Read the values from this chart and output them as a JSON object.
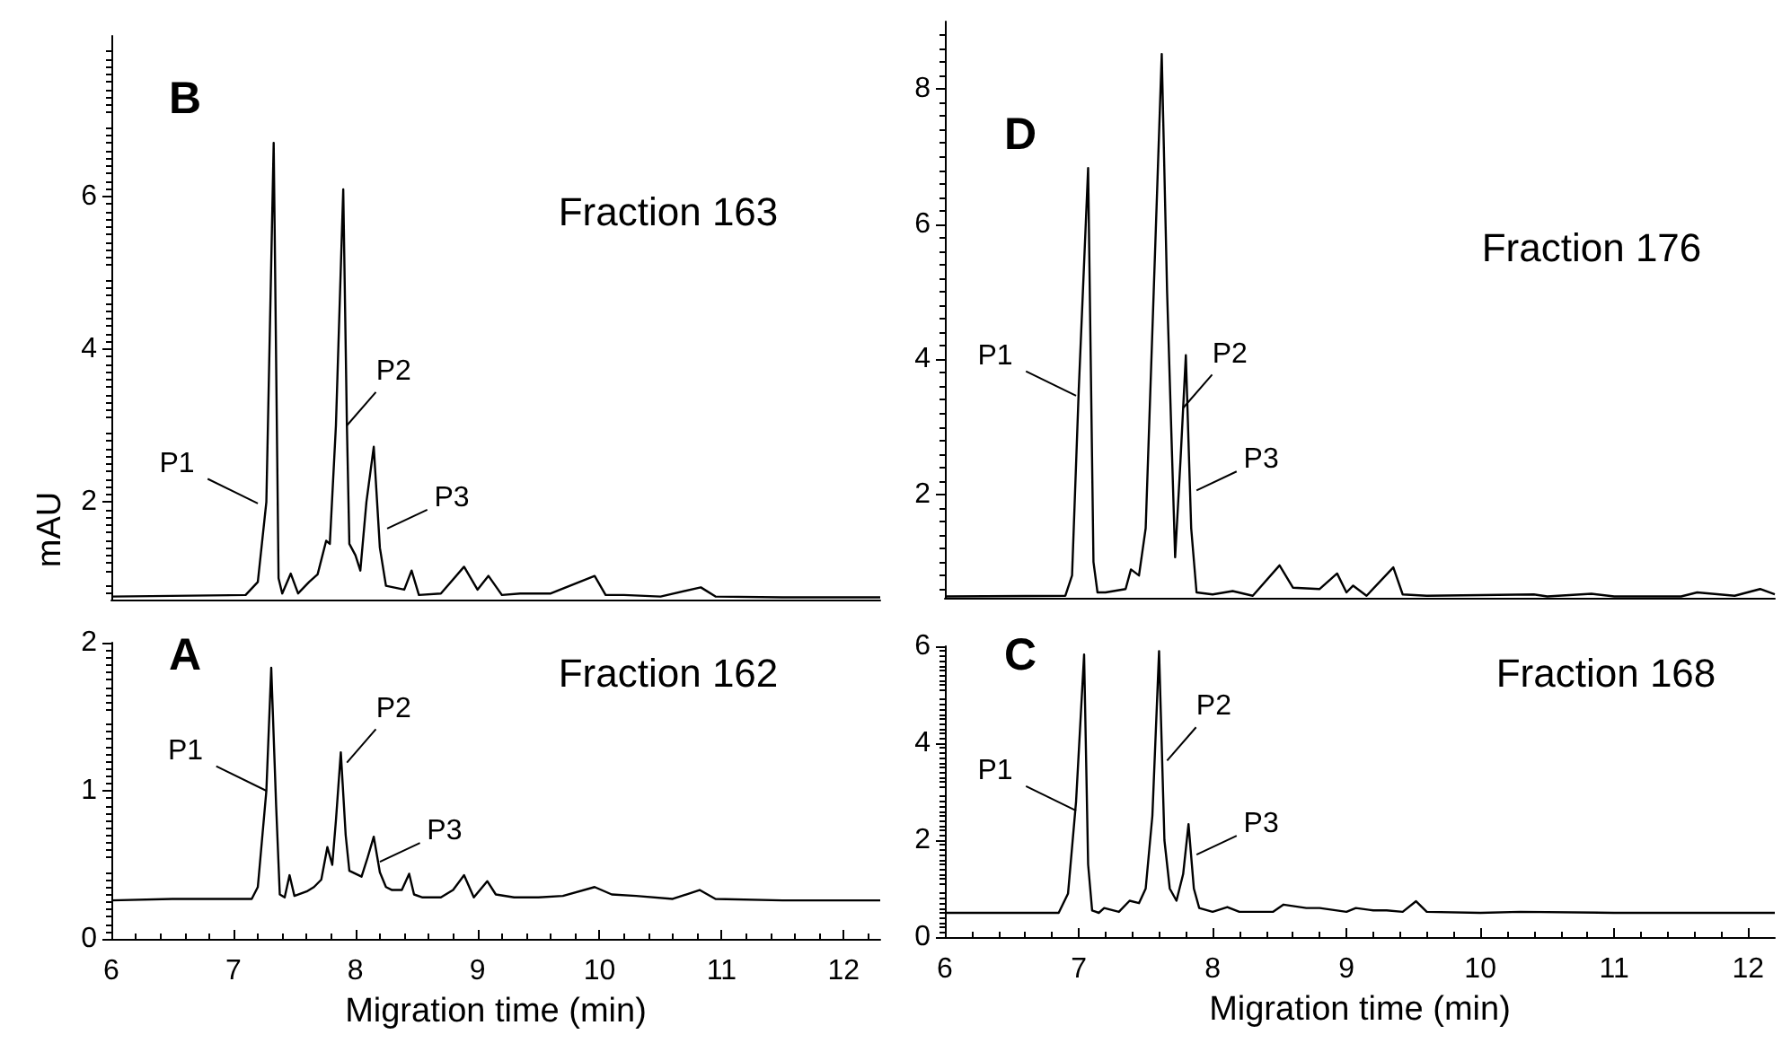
{
  "chart_data": [
    {
      "type": "line",
      "ylabel": "mAU",
      "annotations": [
        "B",
        "Fraction 163",
        {
          "text": "P1",
          "x": 7.2,
          "y": 1.98
        },
        {
          "text": "P2",
          "x": 7.93,
          "y": 3.0
        },
        {
          "text": "P3",
          "x": 8.26,
          "y": 1.65
        }
      ],
      "xlim": [
        6,
        12.3
      ],
      "ylim": [
        0.72,
        8.1
      ],
      "yticks": [
        2,
        4,
        6
      ],
      "tick_labels": "y",
      "series": [
        {
          "color": "#000000",
          "x": [
            6.0,
            7.1,
            7.2,
            7.27,
            7.33,
            7.37,
            7.4,
            7.47,
            7.53,
            7.62,
            7.69,
            7.76,
            7.79,
            7.84,
            7.9,
            7.93,
            7.95,
            8.0,
            8.04,
            8.09,
            8.15,
            8.2,
            8.25,
            8.4,
            8.46,
            8.52,
            8.7,
            8.89,
            9.0,
            9.09,
            9.2,
            9.35,
            9.6,
            9.96,
            10.05,
            10.2,
            10.5,
            10.83,
            10.95,
            11.5,
            12.3
          ],
          "values": [
            0.76,
            0.78,
            0.95,
            2.0,
            6.7,
            1.0,
            0.8,
            1.06,
            0.8,
            0.95,
            1.05,
            1.49,
            1.45,
            3.0,
            6.09,
            3.0,
            1.45,
            1.3,
            1.1,
            2.0,
            2.72,
            1.4,
            0.9,
            0.85,
            1.1,
            0.78,
            0.8,
            1.15,
            0.85,
            1.03,
            0.78,
            0.8,
            0.8,
            1.03,
            0.78,
            0.78,
            0.76,
            0.88,
            0.76,
            0.75,
            0.75
          ]
        }
      ]
    },
    {
      "type": "line",
      "xlabel": "Migration time (min)",
      "annotations": [
        "A",
        "Fraction 162",
        {
          "text": "P1",
          "x": 7.27,
          "y": 1.0
        },
        {
          "text": "P2",
          "x": 7.93,
          "y": 1.19
        },
        {
          "text": "P3",
          "x": 8.2,
          "y": 0.52
        }
      ],
      "xlim": [
        6,
        12.3
      ],
      "xticks": [
        6,
        7,
        8,
        9,
        10,
        11,
        12
      ],
      "ylim": [
        0,
        2
      ],
      "yticks": [
        0,
        1,
        2
      ],
      "series": [
        {
          "color": "#000000",
          "x": [
            6.0,
            6.5,
            7.15,
            7.2,
            7.27,
            7.31,
            7.35,
            7.38,
            7.42,
            7.46,
            7.5,
            7.6,
            7.66,
            7.72,
            7.77,
            7.81,
            7.84,
            7.88,
            7.92,
            7.95,
            8.0,
            8.05,
            8.1,
            8.15,
            8.2,
            8.25,
            8.3,
            8.38,
            8.44,
            8.48,
            8.55,
            8.7,
            8.8,
            8.89,
            8.97,
            9.08,
            9.15,
            9.3,
            9.5,
            9.7,
            9.96,
            10.1,
            10.3,
            10.6,
            10.82,
            10.95,
            11.5,
            12.0,
            12.3
          ],
          "values": [
            0.26,
            0.27,
            0.27,
            0.35,
            1.0,
            1.83,
            0.9,
            0.3,
            0.28,
            0.43,
            0.29,
            0.32,
            0.35,
            0.4,
            0.62,
            0.5,
            0.8,
            1.26,
            0.7,
            0.46,
            0.44,
            0.42,
            0.55,
            0.69,
            0.45,
            0.35,
            0.33,
            0.33,
            0.44,
            0.3,
            0.28,
            0.28,
            0.33,
            0.43,
            0.28,
            0.39,
            0.3,
            0.28,
            0.28,
            0.29,
            0.35,
            0.3,
            0.29,
            0.27,
            0.33,
            0.27,
            0.26,
            0.26,
            0.26
          ]
        }
      ]
    },
    {
      "type": "line",
      "annotations": [
        "D",
        "Fraction 176",
        {
          "text": "P1",
          "x": 6.98,
          "y": 3.46
        },
        {
          "text": "P2",
          "x": 7.78,
          "y": 3.28
        },
        {
          "text": "P3",
          "x": 7.88,
          "y": 2.06
        }
      ],
      "xlim": [
        6,
        12.2
      ],
      "ylim": [
        0.47,
        9
      ],
      "yticks": [
        2,
        4,
        6,
        8
      ],
      "tick_labels": "y",
      "series": [
        {
          "color": "#000000",
          "x": [
            6.0,
            6.9,
            6.95,
            7.0,
            7.07,
            7.11,
            7.14,
            7.2,
            7.35,
            7.39,
            7.45,
            7.5,
            7.56,
            7.62,
            7.66,
            7.72,
            7.76,
            7.78,
            7.8,
            7.84,
            7.88,
            8.0,
            8.15,
            8.3,
            8.5,
            8.6,
            8.8,
            8.93,
            9.0,
            9.05,
            9.15,
            9.35,
            9.42,
            9.6,
            10.4,
            10.5,
            10.83,
            11.0,
            11.5,
            11.62,
            11.9,
            12.09,
            12.2
          ],
          "values": [
            0.49,
            0.5,
            0.8,
            3.55,
            6.83,
            1.0,
            0.55,
            0.55,
            0.6,
            0.89,
            0.8,
            1.5,
            5.0,
            8.52,
            5.0,
            1.07,
            2.5,
            3.28,
            4.06,
            1.5,
            0.55,
            0.52,
            0.57,
            0.5,
            0.95,
            0.62,
            0.6,
            0.83,
            0.55,
            0.65,
            0.5,
            0.92,
            0.52,
            0.5,
            0.52,
            0.49,
            0.53,
            0.49,
            0.49,
            0.55,
            0.5,
            0.6,
            0.52
          ]
        }
      ]
    },
    {
      "type": "line",
      "xlabel": "Migration time (min)",
      "annotations": [
        "C",
        "Fraction 168",
        {
          "text": "P1",
          "x": 6.98,
          "y": 2.61
        },
        {
          "text": "P2",
          "x": 7.66,
          "y": 3.64
        },
        {
          "text": "P3",
          "x": 7.88,
          "y": 1.7
        }
      ],
      "xlim": [
        6,
        12.2
      ],
      "xticks": [
        6,
        7,
        8,
        9,
        10,
        11,
        12
      ],
      "ylim": [
        0,
        6
      ],
      "yticks": [
        0,
        2,
        4,
        6
      ],
      "series": [
        {
          "color": "#000000",
          "x": [
            6.0,
            6.85,
            6.92,
            6.98,
            7.04,
            7.07,
            7.1,
            7.15,
            7.19,
            7.3,
            7.38,
            7.45,
            7.5,
            7.55,
            7.6,
            7.64,
            7.68,
            7.73,
            7.78,
            7.82,
            7.86,
            7.9,
            8.0,
            8.11,
            8.2,
            8.45,
            8.53,
            8.7,
            8.8,
            9.0,
            9.07,
            9.2,
            9.3,
            9.42,
            9.52,
            9.6,
            10.0,
            10.3,
            11.0,
            12.2
          ],
          "values": [
            0.5,
            0.5,
            0.9,
            2.8,
            5.83,
            1.5,
            0.55,
            0.5,
            0.6,
            0.52,
            0.75,
            0.7,
            1.0,
            2.5,
            5.9,
            2.0,
            1.0,
            0.75,
            1.3,
            2.33,
            1.0,
            0.6,
            0.52,
            0.62,
            0.52,
            0.52,
            0.67,
            0.6,
            0.6,
            0.52,
            0.6,
            0.55,
            0.55,
            0.52,
            0.74,
            0.52,
            0.5,
            0.52,
            0.5,
            0.5
          ]
        }
      ]
    }
  ]
}
